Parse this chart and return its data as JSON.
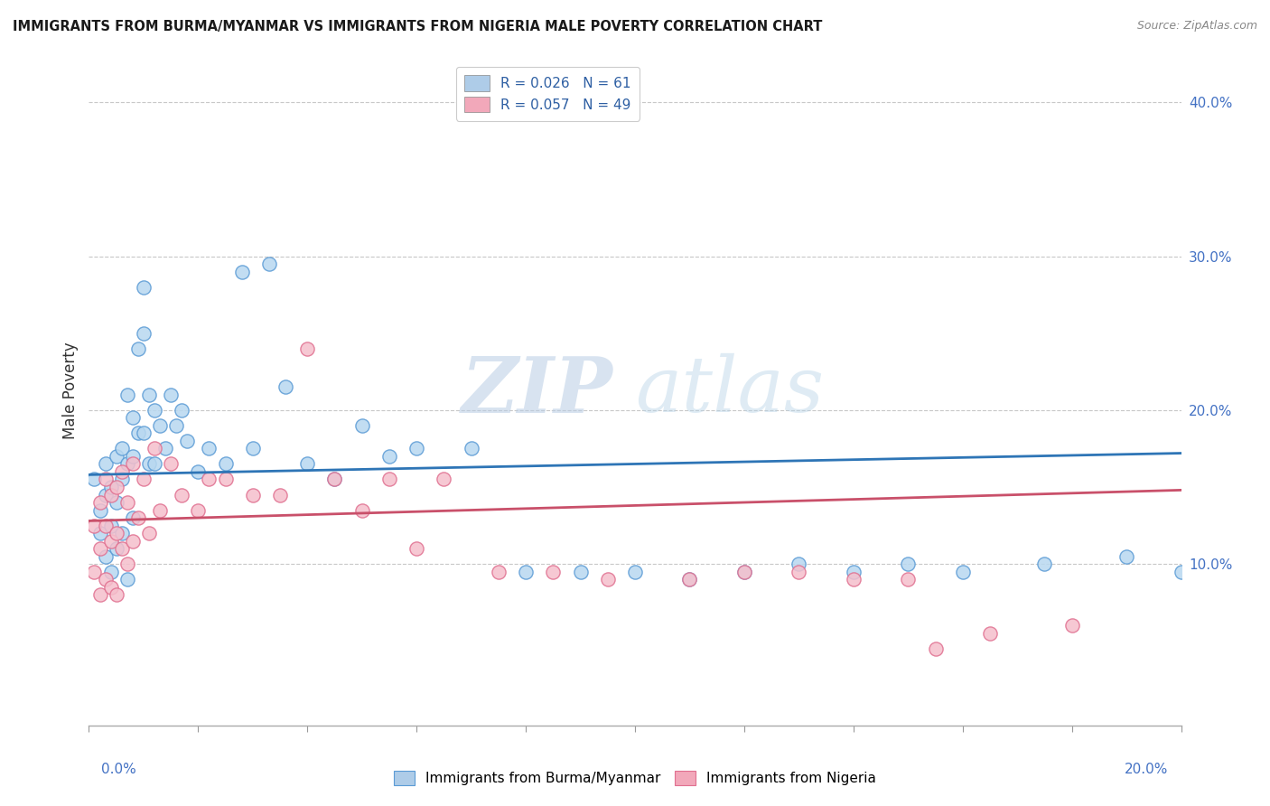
{
  "title": "IMMIGRANTS FROM BURMA/MYANMAR VS IMMIGRANTS FROM NIGERIA MALE POVERTY CORRELATION CHART",
  "source_text": "Source: ZipAtlas.com",
  "ylabel": "Male Poverty",
  "right_yticks_labels": [
    "10.0%",
    "20.0%",
    "30.0%",
    "40.0%"
  ],
  "right_ytick_vals": [
    0.1,
    0.2,
    0.3,
    0.4
  ],
  "xlim": [
    0.0,
    0.2
  ],
  "ylim": [
    -0.005,
    0.43
  ],
  "legend_entries": [
    {
      "label": "R = 0.026   N = 61",
      "color": "#aecce8"
    },
    {
      "label": "R = 0.057   N = 49",
      "color": "#f2a8ba"
    }
  ],
  "series1_face_color": "#b8d8f0",
  "series1_edge_color": "#5b9bd5",
  "series2_face_color": "#f5bfcc",
  "series2_edge_color": "#e07090",
  "series1_line_color": "#2e75b6",
  "series2_line_color": "#c9506a",
  "watermark_zip": "ZIP",
  "watermark_atlas": "atlas",
  "grid_color": "#c8c8c8",
  "bottom_legend": [
    {
      "label": "Immigrants from Burma/Myanmar",
      "face": "#aecce8",
      "edge": "#5b9bd5"
    },
    {
      "label": "Immigrants from Nigeria",
      "face": "#f2a8ba",
      "edge": "#e07090"
    }
  ],
  "scatter1_x": [
    0.001,
    0.002,
    0.002,
    0.003,
    0.003,
    0.003,
    0.004,
    0.004,
    0.004,
    0.005,
    0.005,
    0.005,
    0.006,
    0.006,
    0.006,
    0.007,
    0.007,
    0.007,
    0.008,
    0.008,
    0.008,
    0.009,
    0.009,
    0.01,
    0.01,
    0.01,
    0.011,
    0.011,
    0.012,
    0.012,
    0.013,
    0.014,
    0.015,
    0.016,
    0.017,
    0.018,
    0.02,
    0.022,
    0.025,
    0.028,
    0.03,
    0.033,
    0.036,
    0.04,
    0.045,
    0.05,
    0.055,
    0.06,
    0.07,
    0.08,
    0.09,
    0.1,
    0.11,
    0.12,
    0.13,
    0.14,
    0.15,
    0.16,
    0.175,
    0.19,
    0.2
  ],
  "scatter1_y": [
    0.155,
    0.135,
    0.12,
    0.165,
    0.145,
    0.105,
    0.15,
    0.125,
    0.095,
    0.17,
    0.14,
    0.11,
    0.175,
    0.155,
    0.12,
    0.165,
    0.21,
    0.09,
    0.195,
    0.17,
    0.13,
    0.24,
    0.185,
    0.25,
    0.28,
    0.185,
    0.21,
    0.165,
    0.2,
    0.165,
    0.19,
    0.175,
    0.21,
    0.19,
    0.2,
    0.18,
    0.16,
    0.175,
    0.165,
    0.29,
    0.175,
    0.295,
    0.215,
    0.165,
    0.155,
    0.19,
    0.17,
    0.175,
    0.175,
    0.095,
    0.095,
    0.095,
    0.09,
    0.095,
    0.1,
    0.095,
    0.1,
    0.095,
    0.1,
    0.105,
    0.095
  ],
  "scatter2_x": [
    0.001,
    0.001,
    0.002,
    0.002,
    0.002,
    0.003,
    0.003,
    0.003,
    0.004,
    0.004,
    0.004,
    0.005,
    0.005,
    0.005,
    0.006,
    0.006,
    0.007,
    0.007,
    0.008,
    0.008,
    0.009,
    0.01,
    0.011,
    0.012,
    0.013,
    0.015,
    0.017,
    0.02,
    0.022,
    0.025,
    0.03,
    0.035,
    0.04,
    0.045,
    0.05,
    0.055,
    0.06,
    0.065,
    0.075,
    0.085,
    0.095,
    0.11,
    0.12,
    0.13,
    0.14,
    0.15,
    0.155,
    0.165,
    0.18
  ],
  "scatter2_y": [
    0.125,
    0.095,
    0.14,
    0.11,
    0.08,
    0.155,
    0.125,
    0.09,
    0.145,
    0.115,
    0.085,
    0.15,
    0.12,
    0.08,
    0.16,
    0.11,
    0.14,
    0.1,
    0.165,
    0.115,
    0.13,
    0.155,
    0.12,
    0.175,
    0.135,
    0.165,
    0.145,
    0.135,
    0.155,
    0.155,
    0.145,
    0.145,
    0.24,
    0.155,
    0.135,
    0.155,
    0.11,
    0.155,
    0.095,
    0.095,
    0.09,
    0.09,
    0.095,
    0.095,
    0.09,
    0.09,
    0.045,
    0.055,
    0.06
  ],
  "trendline1_x0": 0.0,
  "trendline1_x1": 0.2,
  "trendline1_y0": 0.158,
  "trendline1_y1": 0.172,
  "trendline2_x0": 0.0,
  "trendline2_x1": 0.2,
  "trendline2_y0": 0.128,
  "trendline2_y1": 0.148
}
